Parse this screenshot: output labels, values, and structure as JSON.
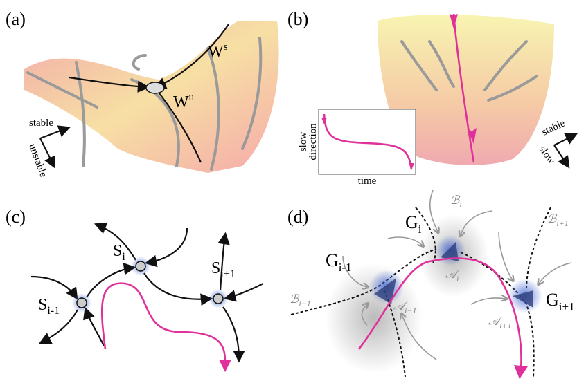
{
  "panel_a": {
    "label": "(a)",
    "stable_manifold": {
      "base": "W",
      "sup": "s"
    },
    "unstable_manifold": {
      "base": "W",
      "sup": "u"
    },
    "axis_stable": "stable",
    "axis_unstable": "unstable"
  },
  "panel_b": {
    "label": "(b)",
    "axis_stable": "stable",
    "axis_slow": "slow",
    "inset_ylabel_lines": [
      "slow",
      "direction"
    ],
    "inset_xlabel": "time"
  },
  "panel_c": {
    "label": "(c)",
    "nodes": [
      {
        "base": "S",
        "sub": "i-1"
      },
      {
        "base": "S",
        "sub": "i"
      },
      {
        "base": "S",
        "sub": "i+1"
      }
    ]
  },
  "panel_d": {
    "label": "(d)",
    "regions": [
      {
        "base": "G",
        "sub": "i-1"
      },
      {
        "base": "G",
        "sub": "i"
      },
      {
        "base": "G",
        "sub": "i+1"
      }
    ],
    "boundaries": [
      {
        "base": "ℬ",
        "sub": "i−1"
      },
      {
        "base": "ℬ",
        "sub": "i"
      },
      {
        "base": "ℬ",
        "sub": "i+1"
      }
    ],
    "attractors": [
      {
        "base": "𝒜",
        "sub": "i−1"
      },
      {
        "base": "𝒜",
        "sub": "i"
      },
      {
        "base": "𝒜",
        "sub": "i+1"
      }
    ]
  }
}
